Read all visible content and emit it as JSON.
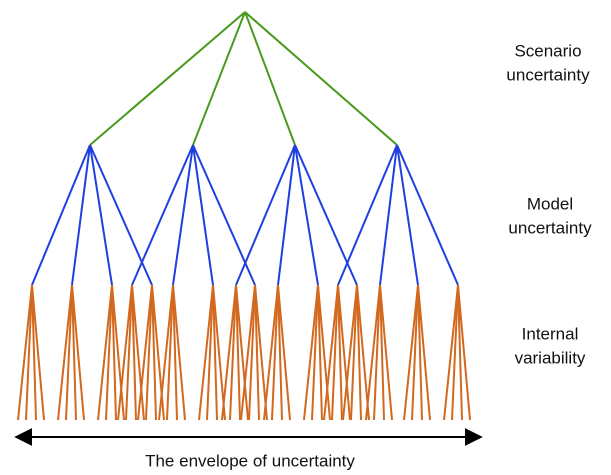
{
  "labels": [
    {
      "lines": [
        "Scenario",
        "uncertainty"
      ]
    },
    {
      "lines": [
        "Model",
        "uncertainty"
      ]
    },
    {
      "lines": [
        "Internal",
        "variability"
      ]
    }
  ],
  "envelope": "The envelope of uncertainty"
}
